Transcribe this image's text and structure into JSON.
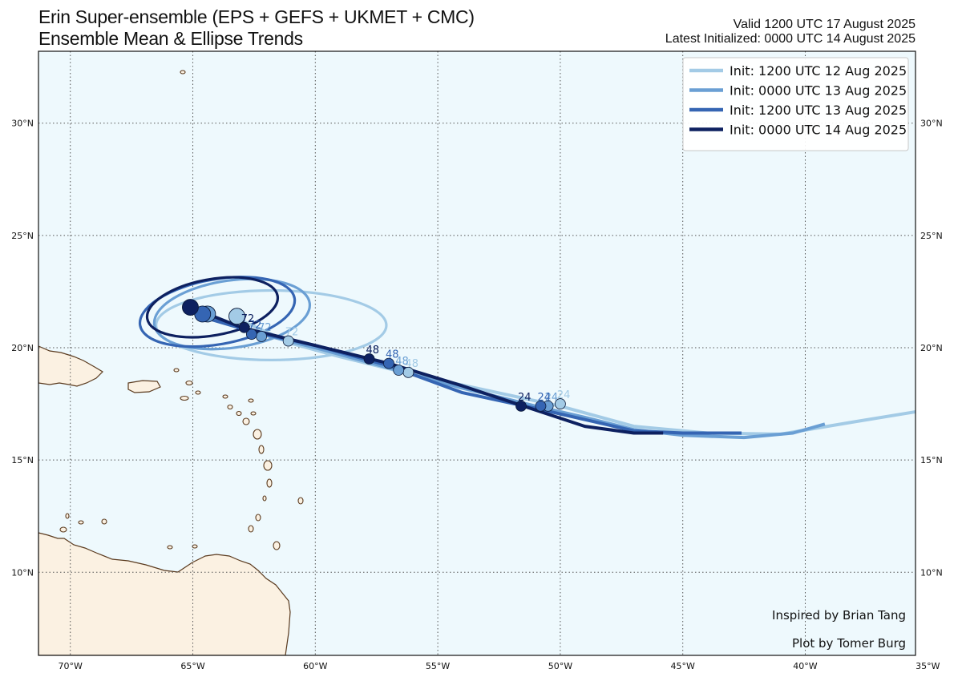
{
  "title": {
    "line1": "Erin Super-ensemble (EPS + GEFS + UKMET + CMC)",
    "line2": "Ensemble Mean & Ellipse Trends"
  },
  "valid": {
    "line1": "Valid 1200 UTC 17 August 2025",
    "line2": "Latest Initialized: 0000 UTC 14 August 2025"
  },
  "credits": {
    "inspired": "Inspired by Brian Tang",
    "plot_by": "Plot by Tomer Burg"
  },
  "colors": {
    "ocean": "#eef9fd",
    "land": "#fbf1e2",
    "coast": "#5a3a1e",
    "grid": "#555555"
  },
  "chart_data": {
    "type": "map",
    "extent": {
      "lon": [
        -71.3,
        -35.5
      ],
      "lat": [
        6.3,
        33.2
      ]
    },
    "grid": true,
    "lon_ticks": [
      {
        "value": -70,
        "label": "70°W"
      },
      {
        "value": -65,
        "label": "65°W"
      },
      {
        "value": -60,
        "label": "60°W"
      },
      {
        "value": -55,
        "label": "55°W"
      },
      {
        "value": -50,
        "label": "50°W"
      },
      {
        "value": -45,
        "label": "45°W"
      },
      {
        "value": -40,
        "label": "40°W"
      },
      {
        "value": -35,
        "label": "35°W"
      }
    ],
    "lat_ticks": [
      {
        "value": 10,
        "label": "10°N"
      },
      {
        "value": 15,
        "label": "15°N"
      },
      {
        "value": 20,
        "label": "20°N"
      },
      {
        "value": 25,
        "label": "25°N"
      },
      {
        "value": 30,
        "label": "30°N"
      }
    ],
    "legend_position": "top-right",
    "series": [
      {
        "name": "Init: 1200 UTC 12 Aug 2025",
        "color": "#a3cbe6",
        "track": [
          [
            -35.2,
            17.2
          ],
          [
            -38,
            16.7
          ],
          [
            -41,
            16.15
          ],
          [
            -44,
            16.2
          ],
          [
            -47,
            16.5
          ],
          [
            -48,
            16.8
          ],
          [
            -50,
            17.4
          ],
          [
            -53,
            18.1
          ],
          [
            -56,
            18.8
          ],
          [
            -59,
            19.6
          ],
          [
            -61,
            20.2
          ],
          [
            -63.2,
            21.3
          ]
        ],
        "points": [
          {
            "hour": "24",
            "lon": -50.0,
            "lat": 17.5
          },
          {
            "hour": "48",
            "lon": -56.2,
            "lat": 18.9
          },
          {
            "hour": "72",
            "lon": -61.1,
            "lat": 20.3
          }
        ],
        "final_position": [
          -63.2,
          21.4
        ],
        "ellipse": {
          "center": [
            -61.8,
            21.0
          ],
          "rx_deg": 4.7,
          "ry_deg": 1.55,
          "rotation_deg": 0
        }
      },
      {
        "name": "Init: 0000 UTC 13 Aug 2025",
        "color": "#6a9fd4",
        "track": [
          [
            -39.2,
            16.6
          ],
          [
            -40.5,
            16.2
          ],
          [
            -42.5,
            16.0
          ],
          [
            -45,
            16.1
          ],
          [
            -47,
            16.35
          ],
          [
            -49,
            16.9
          ],
          [
            -51,
            17.4
          ],
          [
            -54,
            18.2
          ],
          [
            -57,
            19.1
          ],
          [
            -60,
            20.0
          ],
          [
            -62.2,
            20.6
          ],
          [
            -64.4,
            21.4
          ]
        ],
        "points": [
          {
            "hour": "24",
            "lon": -50.5,
            "lat": 17.4
          },
          {
            "hour": "48",
            "lon": -56.6,
            "lat": 19.0
          },
          {
            "hour": "72",
            "lon": -62.2,
            "lat": 20.5
          }
        ],
        "final_position": [
          -64.4,
          21.5
        ],
        "ellipse": {
          "center": [
            -63.4,
            21.5
          ],
          "rx_deg": 3.2,
          "ry_deg": 1.5,
          "rotation_deg": -8
        }
      },
      {
        "name": "Init: 1200 UTC 13 Aug 2025",
        "color": "#3565b3",
        "track": [
          [
            -42.6,
            16.2
          ],
          [
            -45,
            16.2
          ],
          [
            -47,
            16.3
          ],
          [
            -49,
            16.8
          ],
          [
            -51,
            17.3
          ],
          [
            -54,
            18.0
          ],
          [
            -57,
            19.2
          ],
          [
            -60,
            20.1
          ],
          [
            -62.5,
            20.7
          ],
          [
            -64.7,
            21.4
          ]
        ],
        "points": [
          {
            "hour": "24",
            "lon": -50.8,
            "lat": 17.4
          },
          {
            "hour": "48",
            "lon": -57.0,
            "lat": 19.3
          },
          {
            "hour": "72",
            "lon": -62.6,
            "lat": 20.6
          }
        ],
        "final_position": [
          -64.6,
          21.5
        ],
        "ellipse": {
          "center": [
            -64.0,
            21.6
          ],
          "rx_deg": 3.2,
          "ry_deg": 1.45,
          "rotation_deg": -10
        }
      },
      {
        "name": "Init: 0000 UTC 14 Aug 2025",
        "color": "#0d2060",
        "track": [
          [
            -45.8,
            16.2
          ],
          [
            -47,
            16.2
          ],
          [
            -49,
            16.5
          ],
          [
            -51.5,
            17.4
          ],
          [
            -54,
            18.3
          ],
          [
            -57,
            19.3
          ],
          [
            -60,
            20.1
          ],
          [
            -63,
            20.9
          ],
          [
            -65.1,
            21.8
          ]
        ],
        "points": [
          {
            "hour": "24",
            "lon": -51.6,
            "lat": 17.4
          },
          {
            "hour": "48",
            "lon": -57.8,
            "lat": 19.5
          },
          {
            "hour": "72",
            "lon": -62.9,
            "lat": 20.9
          }
        ],
        "final_position": [
          -65.1,
          21.8
        ],
        "ellipse": {
          "center": [
            -64.2,
            21.8
          ],
          "rx_deg": 2.7,
          "ry_deg": 1.25,
          "rotation_deg": -10
        }
      }
    ]
  }
}
